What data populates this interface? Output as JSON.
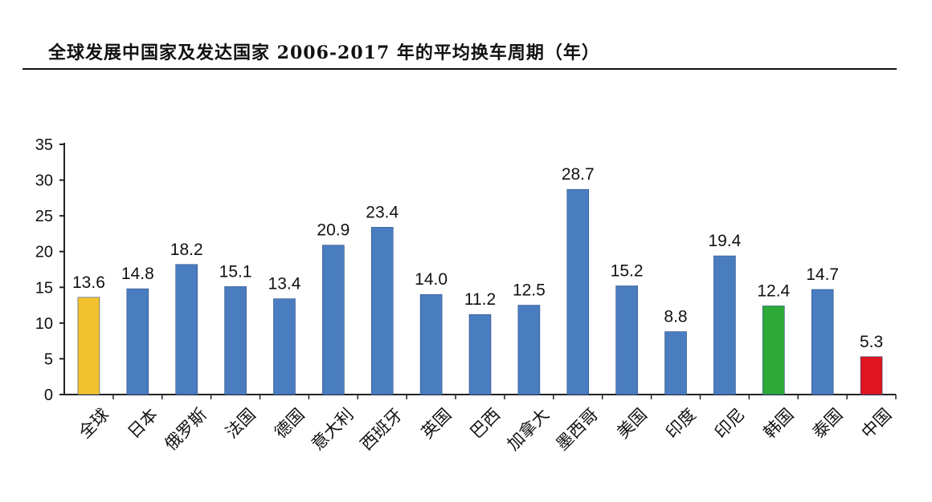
{
  "chart_data": {
    "type": "bar",
    "title": "全球发展中国家及发达国家 2006-2017 年的平均换车周期（年）",
    "categories": [
      "全球",
      "日本",
      "俄罗斯",
      "法国",
      "德国",
      "意大利",
      "西班牙",
      "英国",
      "巴西",
      "加拿大",
      "墨西哥",
      "美国",
      "印度",
      "印尼",
      "韩国",
      "泰国",
      "中国"
    ],
    "values": [
      13.6,
      14.8,
      18.2,
      15.1,
      13.4,
      20.9,
      23.4,
      14.0,
      11.2,
      12.5,
      28.7,
      15.2,
      8.8,
      19.4,
      12.4,
      14.7,
      5.3
    ],
    "data_labels": [
      "13.6",
      "14.8",
      "18.2",
      "15.1",
      "13.4",
      "20.9",
      "23.4",
      "14.0",
      "11.2",
      "12.5",
      "28.7",
      "15.2",
      "8.8",
      "19.4",
      "12.4",
      "14.7",
      "5.3"
    ],
    "bar_colors": [
      "#f2c12e",
      "#4a7cc0",
      "#4a7cc0",
      "#4a7cc0",
      "#4a7cc0",
      "#4a7cc0",
      "#4a7cc0",
      "#4a7cc0",
      "#4a7cc0",
      "#4a7cc0",
      "#4a7cc0",
      "#4a7cc0",
      "#4a7cc0",
      "#4a7cc0",
      "#2eaa3a",
      "#4a7cc0",
      "#e0141e"
    ],
    "ylim": [
      0,
      35
    ],
    "yticks": [
      0,
      5,
      10,
      15,
      20,
      25,
      30,
      35
    ],
    "ytick_labels": [
      "0",
      "5",
      "10",
      "15",
      "20",
      "25",
      "30",
      "35"
    ],
    "xlabel": "",
    "ylabel": "",
    "grid": false,
    "legend": "none"
  }
}
